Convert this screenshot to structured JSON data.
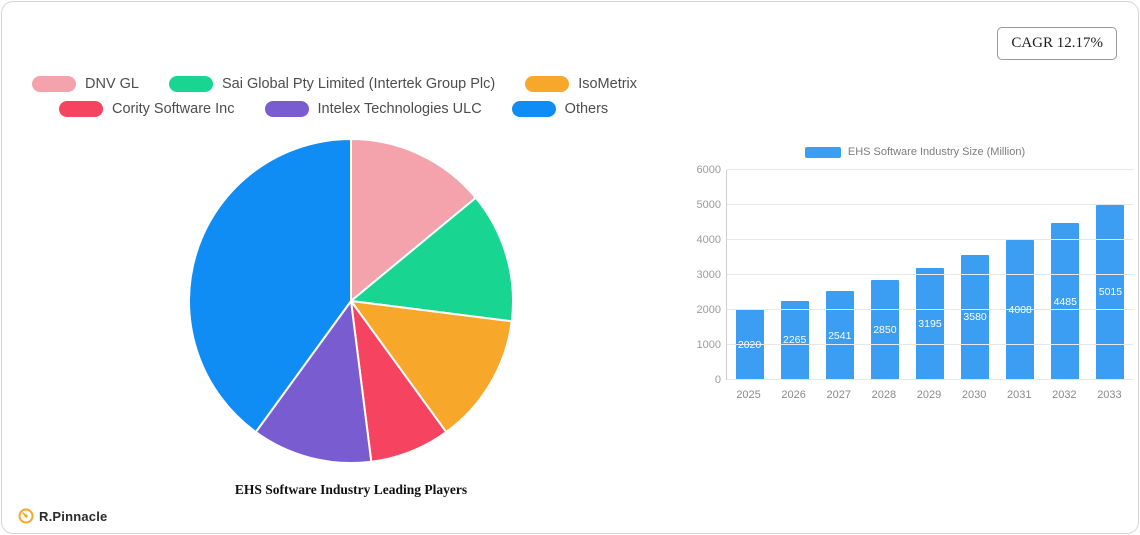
{
  "cagr_badge": "CAGR 12.17%",
  "footer": {
    "brand": "R.Pinnacle"
  },
  "colors": {
    "logo_orange": "#f5a623"
  },
  "chart_data": [
    {
      "type": "pie",
      "title": "EHS Software Industry Leading Players",
      "labels": [
        "DNV GL",
        "Sai Global Pty Limited (Intertek Group Plc)",
        "IsoMetrix",
        "Cority Software Inc",
        "Intelex Technologies ULC",
        "Others"
      ],
      "values": [
        14,
        13,
        13,
        8,
        12,
        40
      ],
      "values_unit": "percent-estimated",
      "colors": [
        "#f4a3ac",
        "#18d592",
        "#f7a82b",
        "#f6435f",
        "#7a5cd1",
        "#0f8df5"
      ],
      "legend_position": "top-left",
      "legend_rows": [
        [
          0,
          1,
          2
        ],
        [
          3,
          4,
          5
        ]
      ],
      "start_angle": "top",
      "direction": "clockwise"
    },
    {
      "type": "bar",
      "legend": [
        "EHS Software Industry Size (Million)"
      ],
      "categories": [
        "2025",
        "2026",
        "2027",
        "2028",
        "2029",
        "2030",
        "2031",
        "2032",
        "2033"
      ],
      "values": [
        2020,
        2265,
        2541,
        2850,
        3195,
        3580,
        4008,
        4485,
        5015
      ],
      "ylim": [
        0,
        6000
      ],
      "yticks": [
        0,
        1000,
        2000,
        3000,
        4000,
        5000,
        6000
      ],
      "bar_color": "#3b9ef2",
      "grid": true,
      "value_labels": "inside-middle"
    }
  ]
}
